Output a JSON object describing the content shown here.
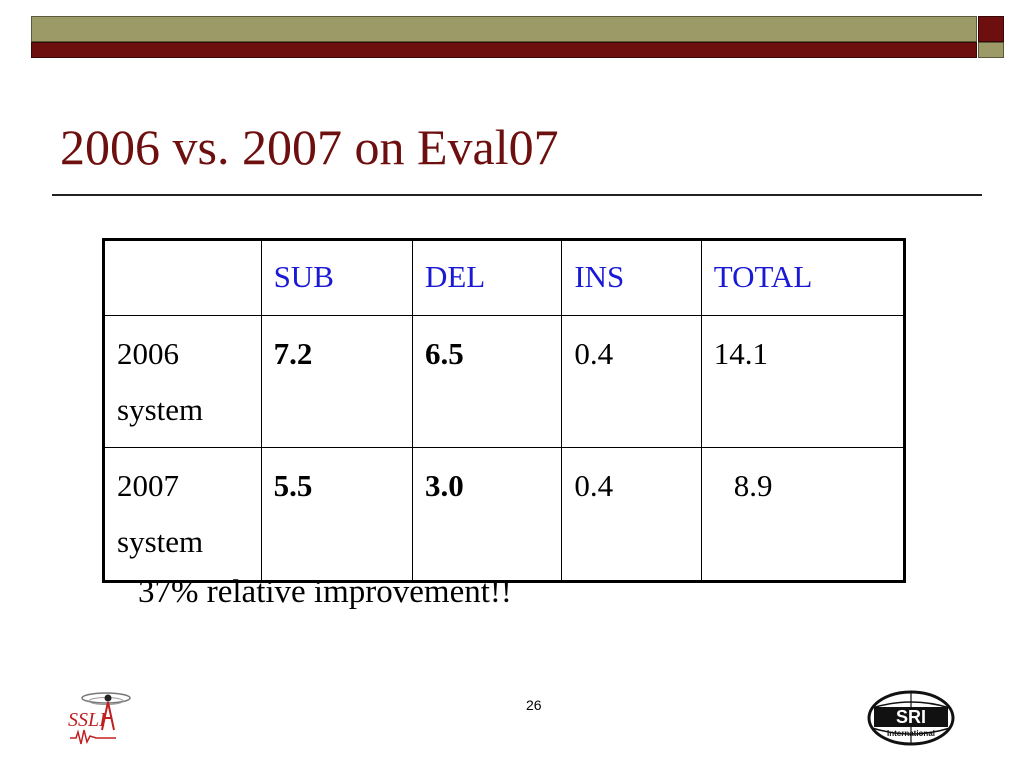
{
  "slide": {
    "title": "2006 vs. 2007 on Eval07",
    "note": "37% relative improvement!!",
    "page_number": "26"
  },
  "table": {
    "headers": [
      "",
      "SUB",
      "DEL",
      "INS",
      "TOTAL"
    ],
    "rows": [
      {
        "label_line1": "2006",
        "label_line2": "system",
        "sub": "7.2",
        "del": "6.5",
        "ins": "0.4",
        "total": "14.1"
      },
      {
        "label_line1": "2007",
        "label_line2": "system",
        "sub": "5.5",
        "del": "3.0",
        "ins": "0.4",
        "total": "8.9"
      }
    ]
  },
  "logos": {
    "left": {
      "text": "SSLI",
      "icon": "ssli-logo-icon"
    },
    "right": {
      "text": "SRI",
      "subtext": "International",
      "icon": "sri-logo-icon"
    }
  },
  "colors": {
    "title": "#6e0f0f",
    "header_text": "#1a1ad6",
    "bar_olive": "#9c9a66",
    "bar_maroon": "#6e0f0f"
  }
}
